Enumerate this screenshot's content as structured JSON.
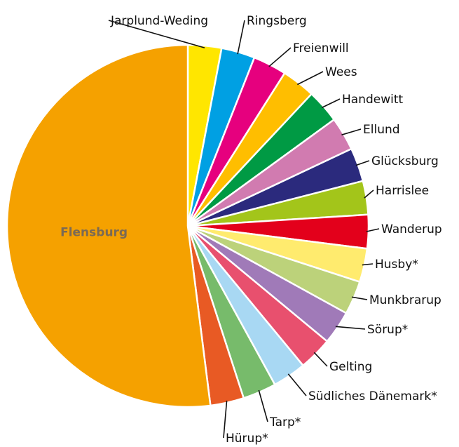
{
  "chart_data": {
    "type": "pie",
    "start": "top",
    "direction": "clockwise",
    "slices": [
      {
        "label": "Jarplund-Weding",
        "value": 3.0,
        "color": "#ffe600"
      },
      {
        "label": "Ringsberg",
        "value": 3.0,
        "color": "#00a0e3"
      },
      {
        "label": "Freienwill",
        "value": 3.0,
        "color": "#e6007e"
      },
      {
        "label": "Wees",
        "value": 3.0,
        "color": "#ffbe00"
      },
      {
        "label": "Handewitt",
        "value": 3.0,
        "color": "#009a44"
      },
      {
        "label": "Ellund",
        "value": 3.0,
        "color": "#d17bb0"
      },
      {
        "label": "Glücksburg",
        "value": 3.0,
        "color": "#2b2a7d"
      },
      {
        "label": "Harrislee",
        "value": 3.0,
        "color": "#a3c51a"
      },
      {
        "label": "Wanderup",
        "value": 3.0,
        "color": "#e3001b"
      },
      {
        "label": "Husby*",
        "value": 3.0,
        "color": "#ffeb6e"
      },
      {
        "label": "Munkbrarup",
        "value": 3.0,
        "color": "#bcd27a"
      },
      {
        "label": "Sörup*",
        "value": 3.0,
        "color": "#a07ab8"
      },
      {
        "label": "Gelting",
        "value": 3.0,
        "color": "#e8506e"
      },
      {
        "label": "Südliches Dänemark*",
        "value": 3.0,
        "color": "#a8d8f3"
      },
      {
        "label": "Tarp*",
        "value": 3.0,
        "color": "#77bb6b"
      },
      {
        "label": "Hürup*",
        "value": 3.0,
        "color": "#e85a24"
      },
      {
        "label": "Flensburg",
        "value": 52.0,
        "color": "#f5a100",
        "inside": true
      }
    ]
  }
}
